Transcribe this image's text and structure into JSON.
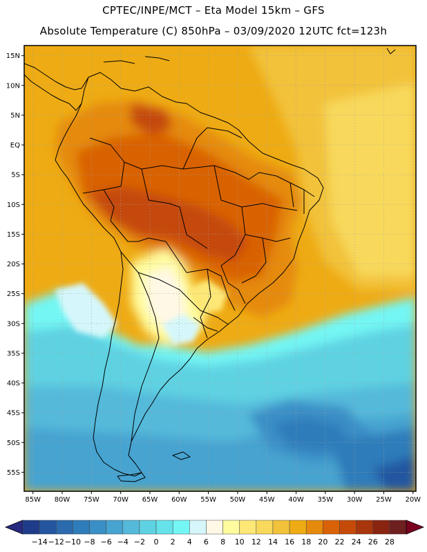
{
  "header": {
    "line1": "CPTEC/INPE/MCT  –   Eta Model 15km  –  GFS",
    "line2": "Absolute Temperature (C) 850hPa  –  03/09/2020 12UTC fct=123h"
  },
  "map": {
    "lat_labels": [
      "15N",
      "10N",
      "5N",
      "EQ",
      "5S",
      "10S",
      "15S",
      "20S",
      "25S",
      "30S",
      "35S",
      "40S",
      "45S",
      "50S",
      "55S"
    ],
    "lon_labels": [
      "85W",
      "80W",
      "75W",
      "70W",
      "65W",
      "60W",
      "55W",
      "50W",
      "45W",
      "40W",
      "35W",
      "30W",
      "25W",
      "20W"
    ],
    "lat_values": [
      15,
      10,
      5,
      0,
      -5,
      -10,
      -15,
      -20,
      -25,
      -30,
      -35,
      -40,
      -45,
      -50,
      -55
    ],
    "lon_values": [
      -85,
      -80,
      -75,
      -70,
      -65,
      -60,
      -55,
      -50,
      -45,
      -40,
      -35,
      -30,
      -25,
      -20
    ],
    "lat_range": [
      -58.2,
      16.7
    ],
    "lon_range": [
      -86.5,
      -19.5
    ]
  },
  "colorbar": {
    "labels": [
      "-14",
      "-12",
      "-10",
      "-8",
      "-6",
      "-4",
      "-2",
      "0",
      "2",
      "4",
      "6",
      "8",
      "10",
      "12",
      "14",
      "16",
      "18",
      "20",
      "22",
      "24",
      "26",
      "28"
    ],
    "colors": [
      "#1f3c8a",
      "#2456a0",
      "#2a6aad",
      "#2f7cba",
      "#3a8fc6",
      "#47a3d0",
      "#55b9da",
      "#5ed2e2",
      "#66e3ea",
      "#73f6f4",
      "#d5f7fb",
      "#fff8e6",
      "#fffb9e",
      "#fde877",
      "#f8d95c",
      "#f2c23b",
      "#eeab14",
      "#e58a0d",
      "#d96206",
      "#c54a08",
      "#a8350c",
      "#882410",
      "#6e1f1f"
    ],
    "left_arrow": "#262a80",
    "right_arrow": "#7a0020"
  }
}
